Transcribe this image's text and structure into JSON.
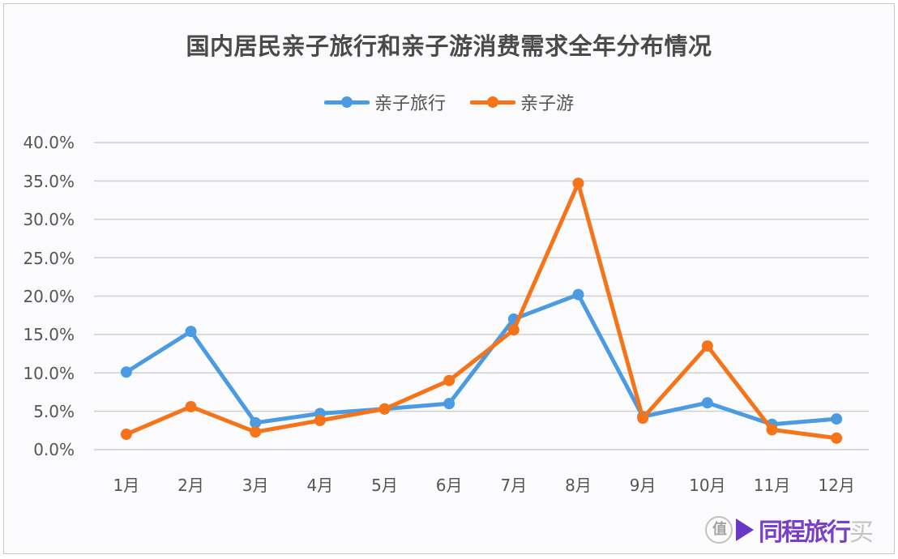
{
  "title": "国内居民亲子旅行和亲子游消费需求全年分布情况",
  "legend": [
    {
      "label": "亲子旅行",
      "color": "#4b9be3"
    },
    {
      "label": "亲子游",
      "color": "#f5741a"
    }
  ],
  "y_ticks": [
    "40.0%",
    "35.0%",
    "30.0%",
    "25.0%",
    "20.0%",
    "15.0%",
    "10.0%",
    "5.0%",
    "0.0%"
  ],
  "x_ticks": [
    "1月",
    "2月",
    "3月",
    "4月",
    "5月",
    "6月",
    "7月",
    "8月",
    "9月",
    "10月",
    "11月",
    "12月"
  ],
  "watermark": {
    "logo": "值",
    "text": "同程旅行",
    "suffix": "买"
  },
  "chart_data": {
    "type": "line",
    "title": "国内居民亲子旅行和亲子游消费需求全年分布情况",
    "xlabel": "",
    "ylabel": "",
    "categories": [
      "1月",
      "2月",
      "3月",
      "4月",
      "5月",
      "6月",
      "7月",
      "8月",
      "9月",
      "10月",
      "11月",
      "12月"
    ],
    "series": [
      {
        "name": "亲子旅行",
        "color": "#4b9be3",
        "values": [
          10.1,
          15.4,
          3.5,
          4.7,
          5.3,
          6.0,
          17.0,
          20.2,
          4.3,
          6.1,
          3.3,
          4.0
        ]
      },
      {
        "name": "亲子游",
        "color": "#f5741a",
        "values": [
          2.0,
          5.6,
          2.3,
          3.8,
          5.3,
          9.0,
          15.6,
          34.7,
          4.1,
          13.5,
          2.6,
          1.5
        ]
      }
    ],
    "ylim": [
      0,
      40
    ],
    "y_unit": "%",
    "y_tick_step": 5,
    "grid": true,
    "legend_position": "top"
  }
}
